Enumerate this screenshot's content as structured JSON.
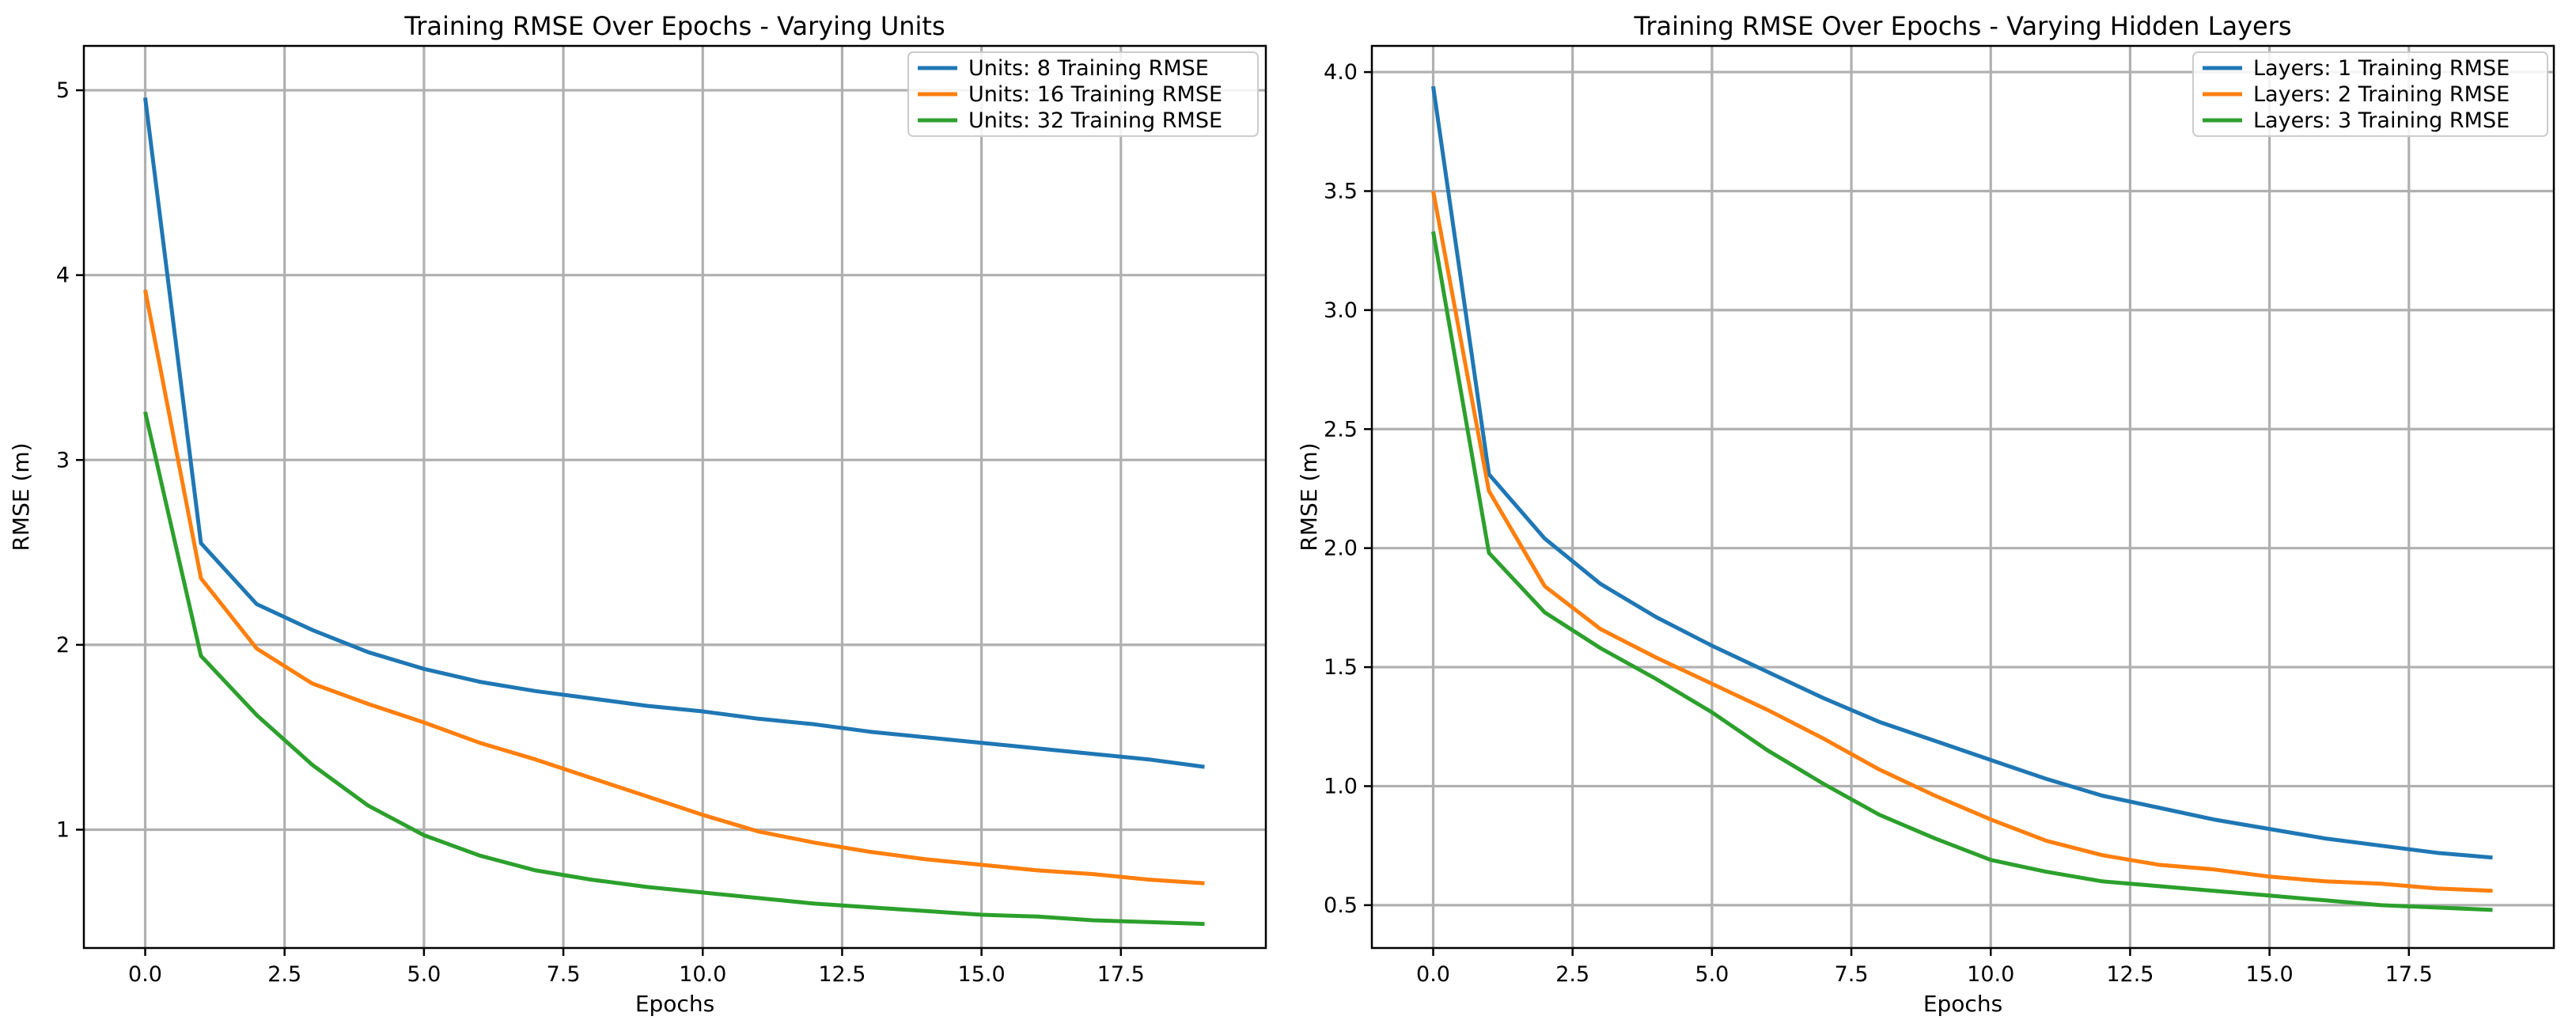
{
  "chart_data": [
    {
      "type": "line",
      "title": "Training RMSE Over Epochs - Varying Units",
      "xlabel": "Epochs",
      "ylabel": "RMSE (m)",
      "xlim": [
        -1.1,
        20.1
      ],
      "ylim": [
        0.36,
        5.24
      ],
      "xticks": [
        0,
        2.5,
        5,
        7.5,
        10,
        12.5,
        15,
        17.5
      ],
      "xtick_labels": [
        "0.0",
        "2.5",
        "5.0",
        "7.5",
        "10.0",
        "12.5",
        "15.0",
        "17.5"
      ],
      "yticks": [
        1,
        2,
        3,
        4,
        5
      ],
      "ytick_labels": [
        "1",
        "2",
        "3",
        "4",
        "5"
      ],
      "grid": true,
      "legend_position": "top-right",
      "x": [
        0,
        1,
        2,
        3,
        4,
        5,
        6,
        7,
        8,
        9,
        10,
        11,
        12,
        13,
        14,
        15,
        16,
        17,
        18,
        19
      ],
      "series": [
        {
          "name": "Units: 8 Training RMSE",
          "color": "#1f77b4",
          "values": [
            4.96,
            2.55,
            2.22,
            2.08,
            1.96,
            1.87,
            1.8,
            1.75,
            1.71,
            1.67,
            1.64,
            1.6,
            1.57,
            1.53,
            1.5,
            1.47,
            1.44,
            1.41,
            1.38,
            1.34
          ]
        },
        {
          "name": "Units: 16 Training RMSE",
          "color": "#ff7f0e",
          "values": [
            3.92,
            2.36,
            1.98,
            1.79,
            1.68,
            1.58,
            1.47,
            1.38,
            1.28,
            1.18,
            1.08,
            0.99,
            0.93,
            0.88,
            0.84,
            0.81,
            0.78,
            0.76,
            0.73,
            0.71
          ]
        },
        {
          "name": "Units: 32 Training RMSE",
          "color": "#2ca02c",
          "values": [
            3.26,
            1.94,
            1.62,
            1.35,
            1.13,
            0.97,
            0.86,
            0.78,
            0.73,
            0.69,
            0.66,
            0.63,
            0.6,
            0.58,
            0.56,
            0.54,
            0.53,
            0.51,
            0.5,
            0.49
          ]
        }
      ]
    },
    {
      "type": "line",
      "title": "Training RMSE Over Epochs - Varying Hidden Layers",
      "xlabel": "Epochs",
      "ylabel": "RMSE (m)",
      "xlim": [
        -1.1,
        20.1
      ],
      "ylim": [
        0.32,
        4.11
      ],
      "xticks": [
        0,
        2.5,
        5,
        7.5,
        10,
        12.5,
        15,
        17.5
      ],
      "xtick_labels": [
        "0.0",
        "2.5",
        "5.0",
        "7.5",
        "10.0",
        "12.5",
        "15.0",
        "17.5"
      ],
      "yticks": [
        0.5,
        1.0,
        1.5,
        2.0,
        2.5,
        3.0,
        3.5,
        4.0
      ],
      "ytick_labels": [
        "0.5",
        "1.0",
        "1.5",
        "2.0",
        "2.5",
        "3.0",
        "3.5",
        "4.0"
      ],
      "grid": true,
      "legend_position": "top-right",
      "x": [
        0,
        1,
        2,
        3,
        4,
        5,
        6,
        7,
        8,
        9,
        10,
        11,
        12,
        13,
        14,
        15,
        16,
        17,
        18,
        19
      ],
      "series": [
        {
          "name": "Layers: 1 Training RMSE",
          "color": "#1f77b4",
          "values": [
            3.94,
            2.31,
            2.04,
            1.85,
            1.71,
            1.59,
            1.48,
            1.37,
            1.27,
            1.19,
            1.11,
            1.03,
            0.96,
            0.91,
            0.86,
            0.82,
            0.78,
            0.75,
            0.72,
            0.7
          ]
        },
        {
          "name": "Layers: 2 Training RMSE",
          "color": "#ff7f0e",
          "values": [
            3.5,
            2.24,
            1.84,
            1.66,
            1.54,
            1.43,
            1.32,
            1.2,
            1.07,
            0.96,
            0.86,
            0.77,
            0.71,
            0.67,
            0.65,
            0.62,
            0.6,
            0.59,
            0.57,
            0.56
          ]
        },
        {
          "name": "Layers: 3 Training RMSE",
          "color": "#2ca02c",
          "values": [
            3.33,
            1.98,
            1.73,
            1.58,
            1.45,
            1.31,
            1.15,
            1.01,
            0.88,
            0.78,
            0.69,
            0.64,
            0.6,
            0.58,
            0.56,
            0.54,
            0.52,
            0.5,
            0.49,
            0.48
          ]
        }
      ]
    }
  ]
}
